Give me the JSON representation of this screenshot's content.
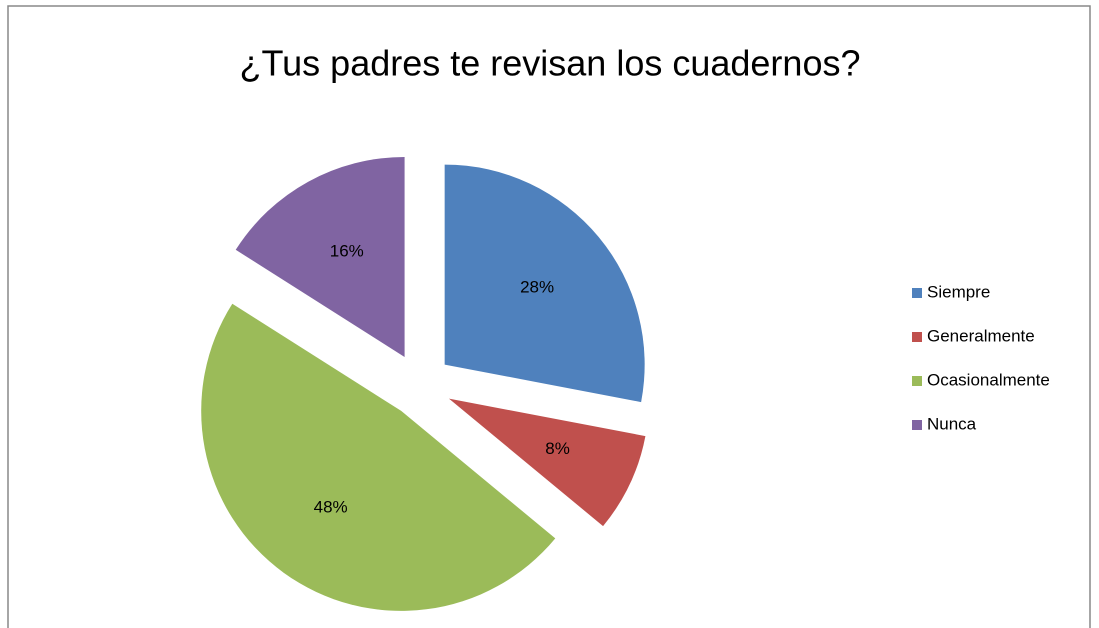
{
  "chart_data": {
    "type": "pie",
    "title": "¿Tus padres te revisan los cuadernos?",
    "categories": [
      "Siempre",
      "Generalmente",
      "Ocasionalmente",
      "Nunca"
    ],
    "values": [
      28,
      8,
      48,
      16
    ],
    "value_labels": [
      "28%",
      "8%",
      "48%",
      "16%"
    ],
    "colors": [
      "#4f81bd",
      "#c0504d",
      "#9bbb59",
      "#8064a2"
    ],
    "exploded": true,
    "legend": "right"
  }
}
